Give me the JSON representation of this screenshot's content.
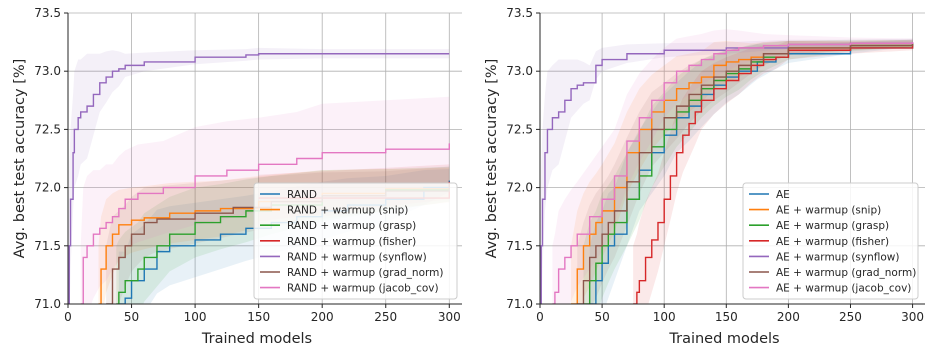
{
  "chart_data": [
    {
      "type": "line",
      "xlabel": "Trained models",
      "ylabel": "Avg. best test accuracy [%]",
      "xlim": [
        0,
        310
      ],
      "ylim": [
        71.0,
        73.5
      ],
      "xticks": [
        "0",
        "50",
        "100",
        "150",
        "200",
        "250",
        "300"
      ],
      "yticks": [
        "71.0",
        "71.5",
        "72.0",
        "72.5",
        "73.0",
        "73.5"
      ],
      "grid": true,
      "legend_position": "lower-right",
      "series": [
        {
          "name": "RAND",
          "color": "#1f77b4",
          "x": [
            40,
            45,
            50,
            60,
            70,
            80,
            100,
            120,
            140,
            160,
            180,
            200,
            220,
            250,
            280,
            300
          ],
          "y": [
            71.0,
            71.05,
            71.2,
            71.3,
            71.45,
            71.5,
            71.55,
            71.6,
            71.65,
            71.7,
            71.75,
            71.8,
            71.85,
            71.9,
            72.0,
            72.06
          ],
          "band": [
            0.45,
            0.4,
            0.4,
            0.38,
            0.36,
            0.34,
            0.32,
            0.3,
            0.28,
            0.27,
            0.26,
            0.25,
            0.23,
            0.2,
            0.15,
            0.1
          ]
        },
        {
          "name": "RAND + warmup (snip)",
          "color": "#ff7f0e",
          "x": [
            24,
            26,
            30,
            35,
            40,
            50,
            60,
            80,
            100,
            120,
            150,
            200,
            250,
            300
          ],
          "y": [
            71.0,
            71.3,
            71.5,
            71.6,
            71.68,
            71.72,
            71.74,
            71.78,
            71.8,
            71.82,
            71.88,
            71.95,
            71.99,
            72.02
          ],
          "band": [
            0.5,
            0.45,
            0.4,
            0.35,
            0.3,
            0.28,
            0.27,
            0.26,
            0.25,
            0.24,
            0.22,
            0.2,
            0.17,
            0.15
          ]
        },
        {
          "name": "RAND + warmup (grasp)",
          "color": "#2ca02c",
          "x": [
            38,
            40,
            45,
            55,
            60,
            70,
            80,
            100,
            120,
            140,
            160,
            200,
            250,
            300
          ],
          "y": [
            71.0,
            71.1,
            71.2,
            71.3,
            71.4,
            71.5,
            71.6,
            71.7,
            71.75,
            71.8,
            71.85,
            71.93,
            71.98,
            72.03
          ],
          "band": [
            0.5,
            0.45,
            0.42,
            0.4,
            0.38,
            0.35,
            0.32,
            0.3,
            0.28,
            0.27,
            0.25,
            0.22,
            0.18,
            0.15
          ]
        },
        {
          "name": "RAND + warmup (fisher)",
          "color": "#d62728",
          "x": [
            150,
            300
          ],
          "y": [
            71.91,
            72.05
          ],
          "band": [
            0.2,
            0.15
          ]
        },
        {
          "name": "RAND + warmup (synflow)",
          "color": "#9467bd",
          "x": [
            0,
            1,
            2,
            4,
            5,
            8,
            10,
            15,
            20,
            25,
            30,
            35,
            40,
            45,
            60,
            100,
            140,
            150,
            200,
            250,
            300
          ],
          "y": [
            71.0,
            71.5,
            71.9,
            72.3,
            72.5,
            72.6,
            72.65,
            72.7,
            72.8,
            72.9,
            72.95,
            73.0,
            73.02,
            73.05,
            73.08,
            73.12,
            73.14,
            73.15,
            73.15,
            73.15,
            73.15
          ],
          "band": [
            0.3,
            0.7,
            0.6,
            0.5,
            0.5,
            0.5,
            0.45,
            0.45,
            0.35,
            0.25,
            0.22,
            0.18,
            0.15,
            0.1,
            0.08,
            0.06,
            0.05,
            0.05,
            0.04,
            0.04,
            0.04
          ]
        },
        {
          "name": "RAND + warmup (grad_norm)",
          "color": "#8c564b",
          "x": [
            30,
            35,
            40,
            45,
            50,
            60,
            70,
            100,
            130,
            160,
            200,
            250,
            300
          ],
          "y": [
            71.0,
            71.3,
            71.4,
            71.5,
            71.6,
            71.7,
            71.73,
            71.78,
            71.83,
            71.88,
            71.93,
            71.97,
            72.03
          ],
          "band": [
            0.5,
            0.45,
            0.4,
            0.35,
            0.32,
            0.3,
            0.28,
            0.26,
            0.24,
            0.22,
            0.2,
            0.17,
            0.15
          ]
        },
        {
          "name": "RAND + warmup (jacob_cov)",
          "color": "#e377c2",
          "x": [
            10,
            12,
            15,
            20,
            25,
            30,
            35,
            40,
            45,
            55,
            75,
            100,
            125,
            150,
            180,
            200,
            250,
            300
          ],
          "y": [
            71.0,
            71.4,
            71.5,
            71.6,
            71.65,
            71.7,
            71.75,
            71.82,
            71.9,
            71.95,
            72.0,
            72.1,
            72.15,
            72.2,
            72.25,
            72.3,
            72.33,
            72.38
          ],
          "band": [
            0.5,
            0.6,
            0.6,
            0.55,
            0.5,
            0.5,
            0.45,
            0.45,
            0.42,
            0.42,
            0.4,
            0.42,
            0.42,
            0.4,
            0.4,
            0.42,
            0.42,
            0.4
          ]
        }
      ]
    },
    {
      "type": "line",
      "xlabel": "Trained models",
      "ylabel": "Avg. best test accuracy [%]",
      "xlim": [
        0,
        310
      ],
      "ylim": [
        71.0,
        73.5
      ],
      "xticks": [
        "0",
        "50",
        "100",
        "150",
        "200",
        "250",
        "300"
      ],
      "yticks": [
        "71.0",
        "71.5",
        "72.0",
        "72.5",
        "73.0",
        "73.5"
      ],
      "grid": true,
      "legend_position": "lower-right",
      "series": [
        {
          "name": "AE",
          "color": "#1f77b4",
          "x": [
            40,
            45,
            50,
            55,
            60,
            70,
            80,
            90,
            100,
            110,
            120,
            130,
            140,
            150,
            160,
            175,
            190,
            200,
            250,
            300
          ],
          "y": [
            71.0,
            71.2,
            71.35,
            71.5,
            71.6,
            71.9,
            72.15,
            72.3,
            72.45,
            72.6,
            72.7,
            72.8,
            72.88,
            72.95,
            73.0,
            73.08,
            73.12,
            73.15,
            73.2,
            73.24
          ],
          "band": [
            0.5,
            0.5,
            0.45,
            0.45,
            0.4,
            0.4,
            0.35,
            0.35,
            0.35,
            0.3,
            0.3,
            0.28,
            0.25,
            0.22,
            0.2,
            0.15,
            0.1,
            0.08,
            0.05,
            0.03
          ]
        },
        {
          "name": "AE + warmup (snip)",
          "color": "#ff7f0e",
          "x": [
            25,
            30,
            35,
            40,
            45,
            50,
            60,
            70,
            80,
            90,
            100,
            110,
            120,
            130,
            140,
            150,
            160,
            170,
            180,
            200,
            250,
            300
          ],
          "y": [
            71.0,
            71.3,
            71.5,
            71.6,
            71.7,
            71.8,
            72.0,
            72.3,
            72.5,
            72.65,
            72.75,
            72.85,
            72.9,
            72.95,
            73.05,
            73.08,
            73.1,
            73.12,
            73.15,
            73.2,
            73.22,
            73.24
          ],
          "band": [
            0.5,
            0.5,
            0.45,
            0.45,
            0.42,
            0.4,
            0.38,
            0.35,
            0.35,
            0.32,
            0.3,
            0.28,
            0.25,
            0.22,
            0.2,
            0.18,
            0.15,
            0.12,
            0.1,
            0.06,
            0.04,
            0.03
          ]
        },
        {
          "name": "AE + warmup (grasp)",
          "color": "#2ca02c",
          "x": [
            35,
            40,
            45,
            50,
            55,
            60,
            70,
            80,
            90,
            100,
            110,
            120,
            130,
            140,
            150,
            160,
            170,
            180,
            200,
            250,
            300
          ],
          "y": [
            71.0,
            71.2,
            71.35,
            71.5,
            71.6,
            71.7,
            71.9,
            72.1,
            72.35,
            72.5,
            72.65,
            72.75,
            72.85,
            72.92,
            72.98,
            73.02,
            73.08,
            73.12,
            73.18,
            73.22,
            73.24
          ],
          "band": [
            0.5,
            0.5,
            0.45,
            0.45,
            0.42,
            0.4,
            0.4,
            0.38,
            0.35,
            0.32,
            0.3,
            0.28,
            0.25,
            0.22,
            0.2,
            0.18,
            0.15,
            0.12,
            0.08,
            0.05,
            0.03
          ]
        },
        {
          "name": "AE + warmup (fisher)",
          "color": "#d62728",
          "x": [
            75,
            78,
            80,
            85,
            90,
            95,
            100,
            105,
            110,
            115,
            120,
            125,
            130,
            140,
            150,
            160,
            170,
            180,
            190,
            200,
            250,
            300
          ],
          "y": [
            71.0,
            71.1,
            71.2,
            71.4,
            71.55,
            71.7,
            71.9,
            72.1,
            72.3,
            72.45,
            72.55,
            72.65,
            72.75,
            72.85,
            72.92,
            72.98,
            73.05,
            73.1,
            73.12,
            73.18,
            73.2,
            73.22
          ],
          "band": [
            0.5,
            0.5,
            0.5,
            0.48,
            0.45,
            0.42,
            0.4,
            0.38,
            0.35,
            0.32,
            0.3,
            0.28,
            0.25,
            0.22,
            0.2,
            0.18,
            0.15,
            0.12,
            0.1,
            0.08,
            0.05,
            0.04
          ]
        },
        {
          "name": "AE + warmup (synflow)",
          "color": "#9467bd",
          "x": [
            0,
            1,
            2,
            4,
            6,
            10,
            15,
            20,
            25,
            30,
            35,
            40,
            45,
            50,
            70,
            100,
            150,
            200,
            250,
            300
          ],
          "y": [
            71.0,
            71.5,
            71.9,
            72.3,
            72.5,
            72.6,
            72.65,
            72.75,
            72.85,
            72.88,
            72.9,
            72.9,
            73.05,
            73.1,
            73.15,
            73.18,
            73.2,
            73.23,
            73.24,
            73.25
          ],
          "band": [
            0.3,
            0.7,
            0.6,
            0.5,
            0.5,
            0.45,
            0.45,
            0.35,
            0.25,
            0.22,
            0.18,
            0.15,
            0.12,
            0.1,
            0.08,
            0.06,
            0.05,
            0.04,
            0.03,
            0.03
          ]
        },
        {
          "name": "AE + warmup (grad_norm)",
          "color": "#8c564b",
          "x": [
            30,
            35,
            40,
            45,
            50,
            55,
            60,
            70,
            80,
            90,
            100,
            110,
            120,
            130,
            140,
            150,
            160,
            170,
            180,
            200,
            250,
            300
          ],
          "y": [
            71.0,
            71.2,
            71.4,
            71.5,
            71.6,
            71.7,
            71.8,
            72.05,
            72.3,
            72.5,
            72.6,
            72.7,
            72.8,
            72.88,
            72.95,
            73.0,
            73.05,
            73.1,
            73.15,
            73.2,
            73.22,
            73.24
          ],
          "band": [
            0.5,
            0.5,
            0.45,
            0.45,
            0.42,
            0.4,
            0.4,
            0.38,
            0.35,
            0.32,
            0.3,
            0.28,
            0.25,
            0.22,
            0.2,
            0.18,
            0.15,
            0.12,
            0.1,
            0.06,
            0.04,
            0.03
          ]
        },
        {
          "name": "AE + warmup (jacob_cov)",
          "color": "#e377c2",
          "x": [
            10,
            12,
            15,
            20,
            25,
            30,
            40,
            50,
            60,
            70,
            80,
            90,
            100,
            110,
            120,
            130,
            140,
            150,
            160,
            180,
            200,
            250,
            300
          ],
          "y": [
            71.0,
            71.1,
            71.3,
            71.4,
            71.5,
            71.6,
            71.75,
            71.9,
            72.1,
            72.4,
            72.6,
            72.75,
            72.9,
            73.0,
            73.05,
            73.1,
            73.15,
            73.18,
            73.2,
            73.22,
            73.23,
            73.24,
            73.25
          ],
          "band": [
            0.5,
            0.5,
            0.5,
            0.5,
            0.48,
            0.45,
            0.45,
            0.45,
            0.4,
            0.4,
            0.38,
            0.35,
            0.3,
            0.28,
            0.25,
            0.22,
            0.2,
            0.18,
            0.15,
            0.1,
            0.08,
            0.05,
            0.03
          ]
        }
      ]
    }
  ]
}
